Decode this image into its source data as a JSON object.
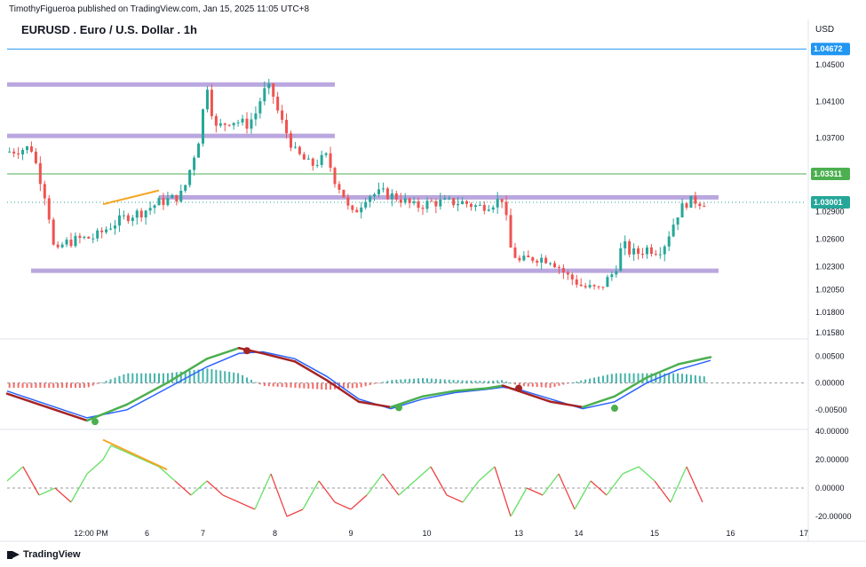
{
  "header": {
    "publisher": "TimothyFigueroa published on TradingView.com, Jan 15, 2025 11:05 UTC+8",
    "symbol_title": "EURUSD . Euro / U.S. Dollar . 1h",
    "currency": "USD",
    "footer_logo": "TradingView"
  },
  "colors": {
    "up": "#26a69a",
    "down": "#ef5350",
    "zone": "#b39ddb",
    "blue_level": "#2196f3",
    "green_level": "#4caf50",
    "wave_green": "#4caf50",
    "wave_red": "#a52424",
    "wave_blue": "#2962ff",
    "trend_orange": "#f5a623",
    "osc_green": "#66e066",
    "osc_red": "#ef4444"
  },
  "chart_data": [
    {
      "type": "candlestick",
      "title": "EURUSD . Euro / U.S. Dollar . 1h",
      "x_tick_labels": [
        "12:00 PM",
        "6",
        "7",
        "8",
        "9",
        "10",
        "13",
        "14",
        "15",
        "16",
        "17"
      ],
      "y_tick_labels": [
        "1.04500",
        "1.04100",
        "1.03700",
        "1.02900",
        "1.02600",
        "1.02300",
        "1.02050",
        "1.01800",
        "1.01580"
      ],
      "ylim": [
        1.0155,
        1.048
      ],
      "price_labels": [
        {
          "label": "1.04672",
          "value": 1.04672,
          "color": "#2196f3"
        },
        {
          "label": "1.03311",
          "value": 1.03311,
          "color": "#4caf50"
        },
        {
          "label": "1.03001",
          "value": 1.03001,
          "color": "#26a69a"
        }
      ],
      "path_points": [
        [
          0,
          1.0355
        ],
        [
          3,
          1.036
        ],
        [
          4,
          1.033
        ],
        [
          5,
          1.03
        ],
        [
          6,
          1.024
        ],
        [
          7,
          1.0255
        ],
        [
          9,
          1.026
        ],
        [
          11,
          1.0262
        ],
        [
          13,
          1.0275
        ],
        [
          15,
          1.0285
        ],
        [
          17,
          1.029
        ],
        [
          19,
          1.03
        ],
        [
          21,
          1.0305
        ],
        [
          22,
          1.031
        ],
        [
          23,
          1.034
        ],
        [
          24,
          1.037
        ],
        [
          25,
          1.043
        ],
        [
          26,
          1.038
        ],
        [
          28,
          1.039
        ],
        [
          30,
          1.0385
        ],
        [
          31,
          1.0395
        ],
        [
          32,
          1.042
        ],
        [
          33,
          1.0425
        ],
        [
          34,
          1.0395
        ],
        [
          36,
          1.0355
        ],
        [
          38,
          1.034
        ],
        [
          40,
          1.035
        ],
        [
          41,
          1.0325
        ],
        [
          42,
          1.031
        ],
        [
          43,
          1.0285
        ],
        [
          44,
          1.0295
        ],
        [
          45,
          1.0308
        ],
        [
          47,
          1.031
        ],
        [
          49,
          1.0305
        ],
        [
          51,
          1.0295
        ],
        [
          53,
          1.03
        ],
        [
          55,
          1.03
        ],
        [
          57,
          1.03
        ],
        [
          59,
          1.0295
        ],
        [
          61,
          1.03
        ],
        [
          62,
          1.0305
        ],
        [
          63,
          1.025
        ],
        [
          64,
          1.0235
        ],
        [
          66,
          1.024
        ],
        [
          68,
          1.0238
        ],
        [
          69,
          1.023
        ],
        [
          70,
          1.022
        ],
        [
          71,
          1.0215
        ],
        [
          72,
          1.0208
        ],
        [
          74,
          1.0205
        ],
        [
          75,
          1.0215
        ],
        [
          76,
          1.0225
        ],
        [
          77,
          1.0255
        ],
        [
          78,
          1.0245
        ],
        [
          79,
          1.0245
        ],
        [
          80,
          1.025
        ],
        [
          81,
          1.0248
        ],
        [
          82,
          1.025
        ],
        [
          83,
          1.027
        ],
        [
          84,
          1.029
        ],
        [
          85,
          1.03
        ],
        [
          86,
          1.0302
        ],
        [
          87,
          1.03
        ]
      ],
      "horizontal_levels": [
        1.04672,
        1.03311
      ],
      "zones": [
        {
          "from": 0,
          "to": 41,
          "value": 1.0428
        },
        {
          "from": 0,
          "to": 41,
          "value": 1.0372
        },
        {
          "from": 19,
          "to": 89,
          "value": 1.0305
        },
        {
          "from": 3,
          "to": 89,
          "value": 1.0225
        }
      ],
      "trendline": {
        "from": [
          12,
          1.0298
        ],
        "to": [
          19,
          1.0313
        ]
      },
      "last_price_line": 1.03001
    },
    {
      "type": "line",
      "name": "wave oscillator",
      "y_tick_labels": [
        "0.00500",
        "0.00000",
        "-0.00500"
      ],
      "ylim": [
        -0.008,
        0.0072
      ],
      "x": [
        0,
        5,
        10,
        15,
        20,
        25,
        29,
        32,
        36,
        40,
        44,
        48,
        52,
        56,
        60,
        62,
        64,
        68,
        72,
        76,
        80,
        84,
        88
      ],
      "series": [
        {
          "name": "",
          "values": [
            -0.002,
            -0.0045,
            -0.007,
            -0.004,
            0.0,
            0.0045,
            0.0065,
            0.0055,
            0.004,
            0.0005,
            -0.0035,
            -0.0045,
            -0.0025,
            -0.0015,
            -0.001,
            -0.0005,
            -0.0015,
            -0.0035,
            -0.0045,
            -0.0025,
            0.001,
            0.0035,
            0.0048
          ]
        },
        {
          "name": "",
          "values": [
            -0.0015,
            -0.004,
            -0.0065,
            -0.005,
            -0.001,
            0.003,
            0.0055,
            0.0058,
            0.0045,
            0.0012,
            -0.003,
            -0.0048,
            -0.003,
            -0.0018,
            -0.0012,
            -0.0008,
            -0.0012,
            -0.003,
            -0.0048,
            -0.0035,
            0.0,
            0.0025,
            0.0042
          ]
        }
      ],
      "markers": [
        {
          "x": 11,
          "value": -0.0072,
          "color": "#4caf50"
        },
        {
          "x": 30,
          "value": 0.006,
          "color": "#a52424"
        },
        {
          "x": 49,
          "value": -0.0046,
          "color": "#4caf50"
        },
        {
          "x": 64,
          "value": -0.001,
          "color": "#a52424"
        },
        {
          "x": 76,
          "value": -0.0047,
          "color": "#4caf50"
        }
      ]
    },
    {
      "type": "line",
      "name": "momentum oscillator",
      "y_tick_labels": [
        "40.00000",
        "20.00000",
        "0.00000",
        "-20.00000"
      ],
      "ylim": [
        -25,
        40
      ],
      "x": [
        0,
        2,
        4,
        6,
        8,
        10,
        12,
        13,
        15,
        17,
        19,
        21,
        23,
        25,
        27,
        29,
        31,
        33,
        35,
        37,
        39,
        41,
        43,
        45,
        47,
        49,
        51,
        53,
        55,
        57,
        59,
        61,
        63,
        65,
        67,
        69,
        71,
        73,
        75,
        77,
        79,
        81,
        83,
        85,
        87
      ],
      "values": [
        5,
        15,
        -5,
        0,
        -10,
        10,
        20,
        30,
        25,
        20,
        15,
        5,
        -5,
        5,
        -5,
        -10,
        -15,
        10,
        -20,
        -15,
        5,
        -10,
        -15,
        -5,
        10,
        -5,
        5,
        15,
        -5,
        -10,
        5,
        15,
        -20,
        0,
        -5,
        10,
        -15,
        5,
        -5,
        10,
        15,
        5,
        -10,
        15,
        -10
      ],
      "trendline": {
        "from": [
          12,
          34
        ],
        "to": [
          20,
          13
        ]
      }
    }
  ]
}
